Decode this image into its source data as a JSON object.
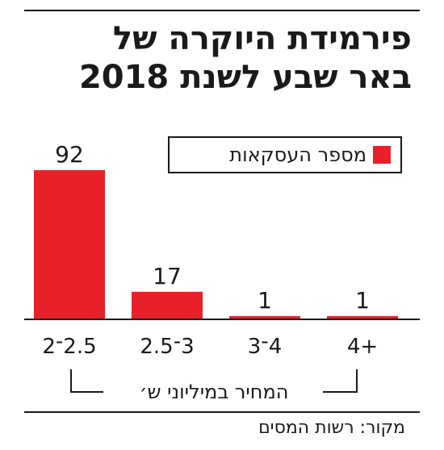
{
  "title_line1": "פירמידת היוקרה של",
  "title_line2": "באר שבע לשנת 2018",
  "source": "מקור: רשות המסים",
  "colors": {
    "bar": "#e8202a",
    "axis": "#1a1a1a"
  },
  "chart_data": {
    "type": "bar",
    "categories": [
      "2.5־2",
      "3־2.5",
      "4־3",
      "+4"
    ],
    "values": [
      92,
      17,
      1,
      1
    ],
    "legend": "מספר העסקאות",
    "xlabel": "המחיר במיליוני ש׳",
    "ylabel": "",
    "ylim": [
      0,
      92
    ],
    "grid": false,
    "legend_position": "top-right"
  }
}
